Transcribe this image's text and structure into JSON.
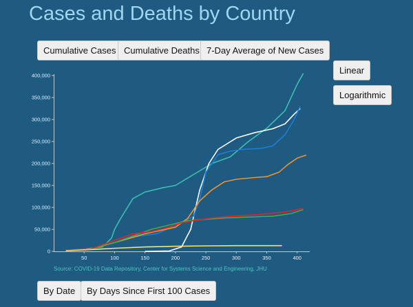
{
  "page": {
    "title": "Cases and Deaths by Country",
    "metric_buttons": [
      "Cumulative Cases",
      "Cumulative Deaths",
      "7-Day Average of New Cases"
    ],
    "scale_buttons": [
      "Linear",
      "Logarithmic"
    ],
    "xaxis_buttons": [
      "By Date",
      "By Days Since First 100 Cases"
    ],
    "source": "Source: COVID-19 Data Repository, Center for Systems Science and Engineering, JHU"
  },
  "chart_data": {
    "type": "line",
    "title": "",
    "xlabel": "",
    "ylabel": "",
    "xlim": [
      0,
      415
    ],
    "ylim": [
      0,
      400000
    ],
    "x_ticks": [
      50,
      100,
      150,
      200,
      250,
      300,
      350,
      400
    ],
    "y_ticks": [
      0,
      50000,
      100000,
      150000,
      200000,
      250000,
      300000,
      350000,
      400000
    ],
    "y_tick_labels": [
      "0",
      "50,000",
      "100,000",
      "150,000",
      "200,000",
      "250,000",
      "300,000",
      "350,000",
      "400,000"
    ],
    "grid": false,
    "series": [
      {
        "color": "#3cc0b4",
        "points": [
          [
            20,
            2000
          ],
          [
            50,
            5000
          ],
          [
            80,
            10000
          ],
          [
            95,
            30000
          ],
          [
            100,
            50000
          ],
          [
            110,
            75000
          ],
          [
            130,
            120000
          ],
          [
            150,
            135000
          ],
          [
            180,
            145000
          ],
          [
            200,
            150000
          ],
          [
            230,
            175000
          ],
          [
            260,
            200000
          ],
          [
            290,
            215000
          ],
          [
            320,
            250000
          ],
          [
            350,
            280000
          ],
          [
            380,
            320000
          ],
          [
            400,
            380000
          ],
          [
            410,
            405000
          ]
        ]
      },
      {
        "color": "#ffffff",
        "points": [
          [
            150,
            0
          ],
          [
            190,
            1000
          ],
          [
            210,
            10000
          ],
          [
            225,
            50000
          ],
          [
            240,
            140000
          ],
          [
            255,
            200000
          ],
          [
            270,
            232000
          ],
          [
            300,
            258000
          ],
          [
            330,
            270000
          ],
          [
            360,
            279000
          ],
          [
            380,
            290000
          ],
          [
            395,
            312000
          ],
          [
            405,
            325000
          ]
        ]
      },
      {
        "color": "#1a7fd8",
        "points": [
          [
            20,
            2000
          ],
          [
            60,
            5000
          ],
          [
            100,
            20000
          ],
          [
            140,
            35000
          ],
          [
            170,
            40000
          ],
          [
            200,
            60000
          ],
          [
            230,
            80000
          ],
          [
            240,
            120000
          ],
          [
            250,
            180000
          ],
          [
            270,
            220000
          ],
          [
            290,
            228000
          ],
          [
            310,
            232000
          ],
          [
            340,
            234000
          ],
          [
            360,
            240000
          ],
          [
            380,
            265000
          ],
          [
            395,
            300000
          ],
          [
            405,
            330000
          ]
        ]
      },
      {
        "color": "#f3922b",
        "points": [
          [
            20,
            2000
          ],
          [
            60,
            5000
          ],
          [
            100,
            20000
          ],
          [
            150,
            40000
          ],
          [
            200,
            55000
          ],
          [
            220,
            75000
          ],
          [
            240,
            115000
          ],
          [
            260,
            140000
          ],
          [
            280,
            158000
          ],
          [
            300,
            164000
          ],
          [
            330,
            168000
          ],
          [
            350,
            170000
          ],
          [
            370,
            180000
          ],
          [
            385,
            198000
          ],
          [
            400,
            212000
          ],
          [
            415,
            219000
          ]
        ]
      },
      {
        "color": "#3dab4a",
        "points": [
          [
            20,
            2000
          ],
          [
            60,
            5000
          ],
          [
            100,
            20000
          ],
          [
            130,
            35000
          ],
          [
            160,
            50000
          ],
          [
            190,
            60000
          ],
          [
            220,
            70000
          ],
          [
            250,
            73000
          ],
          [
            280,
            76000
          ],
          [
            320,
            78000
          ],
          [
            360,
            80000
          ],
          [
            390,
            86000
          ],
          [
            410,
            95000
          ]
        ]
      },
      {
        "color": "#e6232a",
        "points": [
          [
            20,
            2000
          ],
          [
            60,
            5000
          ],
          [
            100,
            25000
          ],
          [
            130,
            40000
          ],
          [
            160,
            45000
          ],
          [
            190,
            55000
          ],
          [
            210,
            65000
          ],
          [
            230,
            70000
          ],
          [
            260,
            76000
          ],
          [
            290,
            80000
          ],
          [
            330,
            83000
          ],
          [
            370,
            88000
          ],
          [
            395,
            93000
          ],
          [
            410,
            98000
          ]
        ]
      },
      {
        "color": "#f5e37a",
        "points": [
          [
            20,
            1500
          ],
          [
            60,
            4000
          ],
          [
            100,
            7000
          ],
          [
            150,
            10000
          ],
          [
            200,
            11500
          ],
          [
            250,
            12500
          ],
          [
            300,
            13000
          ],
          [
            375,
            13000
          ]
        ]
      }
    ]
  }
}
